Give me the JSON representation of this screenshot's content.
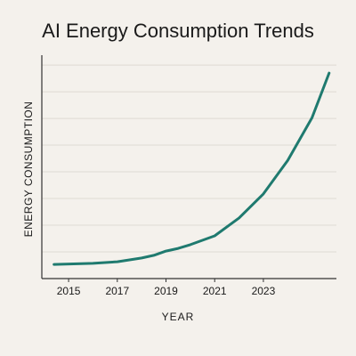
{
  "chart_data": {
    "type": "line",
    "title": "AI Energy Consumption Trends",
    "xlabel": "YEAR",
    "ylabel": "ENERGY CONSUMPTION",
    "x": [
      2014.4,
      2016,
      2017,
      2018,
      2018.5,
      2019,
      2019.5,
      2020,
      2021,
      2022,
      2023,
      2024,
      2025,
      2025.7
    ],
    "values": [
      0.53,
      0.57,
      0.63,
      0.77,
      0.87,
      1.03,
      1.13,
      1.27,
      1.6,
      2.27,
      3.17,
      4.43,
      6.03,
      7.7
    ],
    "color": "#1f7a6f",
    "xlim": [
      2013.9,
      2026
    ],
    "xticks": [
      2015,
      2017,
      2019,
      2021,
      2023
    ],
    "ylim": [
      0,
      8.37
    ],
    "yticks": [
      1,
      2,
      3,
      4,
      5,
      6,
      7,
      8
    ],
    "grid": true
  }
}
